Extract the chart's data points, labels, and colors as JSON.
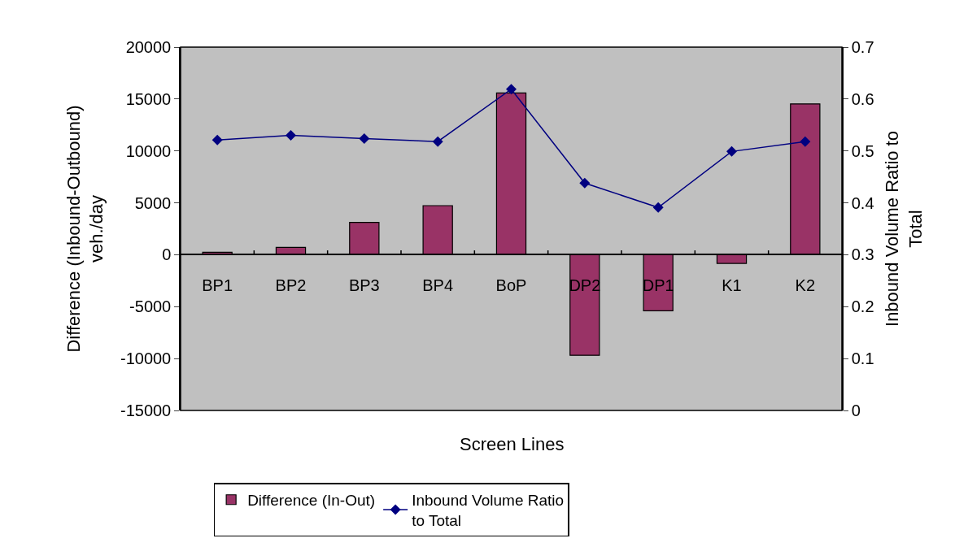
{
  "chart_data": {
    "type": "bar",
    "categories": [
      "BP1",
      "BP2",
      "BP3",
      "BP4",
      "BoP",
      "DP2",
      "DP1",
      "K1",
      "K2"
    ],
    "series": [
      {
        "name": "Difference (In-Out)",
        "color": "#993366",
        "values": [
          240,
          710,
          3110,
          4730,
          15590,
          -9690,
          -5400,
          -830,
          14530
        ]
      },
      {
        "name": "Inbound Volume Ratio to Total",
        "type": "line",
        "axis": "y2",
        "color": "#000080",
        "marker": "diamond",
        "values": [
          0.521,
          0.53,
          0.524,
          0.518,
          0.619,
          0.438,
          0.391,
          0.499,
          0.518
        ]
      }
    ],
    "xlabel": "Screen Lines",
    "ylabel": "Difference (Inbound-Outbound) veh./day",
    "y2label": "Inbound Volume Ratio to Total",
    "ylim": [
      -15000,
      20000
    ],
    "yticks": [
      -15000,
      -10000,
      -5000,
      0,
      5000,
      10000,
      15000,
      20000
    ],
    "y2lim": [
      0,
      0.7
    ],
    "y2ticks": [
      0,
      0.1,
      0.2,
      0.3,
      0.4,
      0.5,
      0.6,
      0.7
    ],
    "grid": false,
    "legend": "bottom"
  }
}
